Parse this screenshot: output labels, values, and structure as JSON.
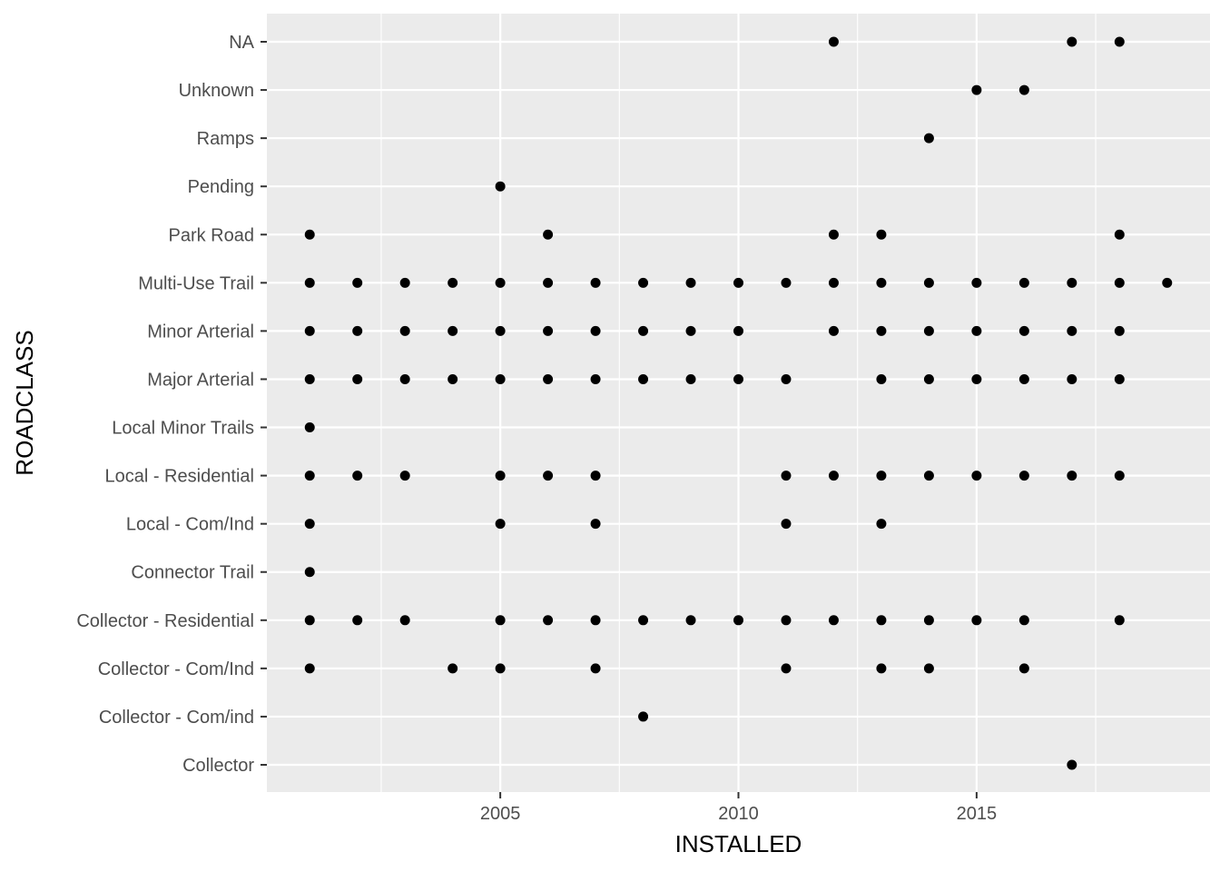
{
  "chart_data": {
    "type": "scatter",
    "title": "",
    "xlabel": "INSTALLED",
    "ylabel": "ROADCLASS",
    "xlim": [
      2000.1,
      2019.9
    ],
    "x_ticks": [
      2005,
      2010,
      2015
    ],
    "x_tick_labels": [
      "2005",
      "2010",
      "2015"
    ],
    "x_minor_breaks": [
      2002.5,
      2007.5,
      2012.5,
      2017.5
    ],
    "categories": [
      "Collector",
      "Collector - Com/ind",
      "Collector - Com/Ind",
      "Collector - Residential",
      "Connector Trail",
      "Local - Com/Ind",
      "Local - Residential",
      "Local Minor Trails",
      "Major Arterial",
      "Minor Arterial",
      "Multi-Use Trail",
      "Park Road",
      "Pending",
      "Ramps",
      "Unknown",
      "NA"
    ],
    "grid": true,
    "legend": "none",
    "point_color": "#000000",
    "panel_background": "#ebebeb",
    "grid_color": "#ffffff",
    "points": {
      "NA": [
        2012,
        2017,
        2018
      ],
      "Unknown": [
        2015,
        2016
      ],
      "Ramps": [
        2014
      ],
      "Pending": [
        2005
      ],
      "Park Road": [
        2001,
        2006,
        2012,
        2013,
        2018
      ],
      "Multi-Use Trail": [
        2001,
        2002,
        2003,
        2004,
        2005,
        2006,
        2007,
        2008,
        2009,
        2010,
        2011,
        2012,
        2013,
        2014,
        2015,
        2016,
        2017,
        2018,
        2019
      ],
      "Minor Arterial": [
        2001,
        2002,
        2003,
        2004,
        2005,
        2006,
        2007,
        2008,
        2009,
        2010,
        2012,
        2013,
        2014,
        2015,
        2016,
        2017,
        2018
      ],
      "Major Arterial": [
        2001,
        2002,
        2003,
        2004,
        2005,
        2006,
        2007,
        2008,
        2009,
        2010,
        2011,
        2013,
        2014,
        2015,
        2016,
        2017,
        2018
      ],
      "Local Minor Trails": [
        2001
      ],
      "Local - Residential": [
        2001,
        2002,
        2003,
        2005,
        2006,
        2007,
        2011,
        2012,
        2013,
        2014,
        2015,
        2016,
        2017,
        2018
      ],
      "Local - Com/Ind": [
        2001,
        2005,
        2007,
        2011,
        2013
      ],
      "Connector Trail": [
        2001
      ],
      "Collector - Residential": [
        2001,
        2002,
        2003,
        2005,
        2006,
        2007,
        2008,
        2009,
        2010,
        2011,
        2012,
        2013,
        2014,
        2015,
        2016,
        2018
      ],
      "Collector - Com/Ind": [
        2001,
        2004,
        2005,
        2007,
        2011,
        2013,
        2014,
        2016
      ],
      "Collector - Com/ind": [
        2008
      ],
      "Collector": [
        2017
      ]
    }
  }
}
